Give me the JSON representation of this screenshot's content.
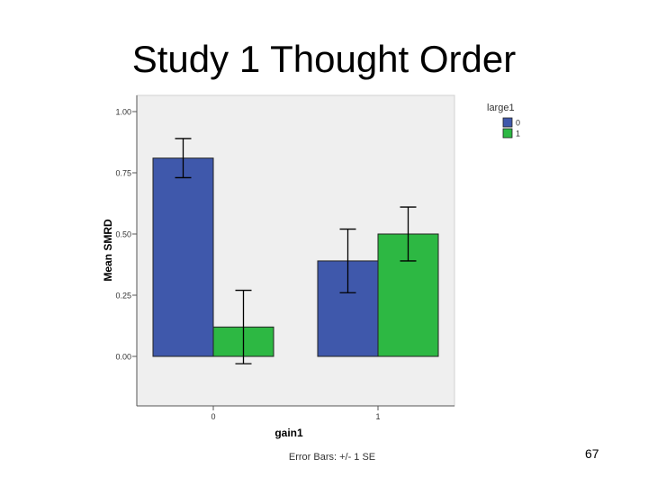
{
  "slide": {
    "title": "Study 1 Thought Order",
    "page_number": "67"
  },
  "chart_data": {
    "type": "bar",
    "categories": [
      "0",
      "1"
    ],
    "xlabel": "gain1",
    "ylabel": "Mean SMRD",
    "ylim": [
      -0.2,
      1.06
    ],
    "yticks": [
      "1.00",
      "0.75",
      "0.50",
      "0.25",
      "0.00"
    ],
    "ytick_values": [
      1.0,
      0.75,
      0.5,
      0.25,
      0.0
    ],
    "legend_title": "large1",
    "legend_placement": "top-right, outside plot",
    "footnote": "Error Bars: +/- 1 SE",
    "grid": false,
    "plot_background": "#efefef",
    "series": [
      {
        "name": "0",
        "color": "#3f58ab",
        "values": [
          0.81,
          0.39
        ],
        "error_low": [
          0.73,
          0.26
        ],
        "error_high": [
          0.89,
          0.52
        ]
      },
      {
        "name": "1",
        "color": "#2db843",
        "values": [
          0.12,
          0.5
        ],
        "error_low": [
          -0.03,
          0.39
        ],
        "error_high": [
          0.27,
          0.61
        ]
      }
    ]
  }
}
